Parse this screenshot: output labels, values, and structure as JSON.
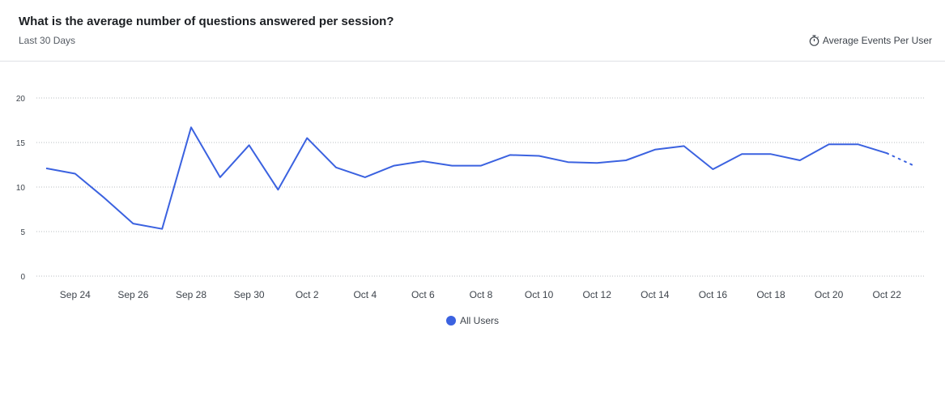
{
  "header": {
    "title": "What is the average number of questions answered per session?",
    "subtitle": "Last 30 Days",
    "metric_label": "Average Events Per User",
    "metric_icon": "stopwatch-icon"
  },
  "colors": {
    "series": "#3b62e0",
    "grid": "#b8bcc2",
    "axis_text": "#3e444c"
  },
  "chart_data": {
    "type": "line",
    "title": "What is the average number of questions answered per session?",
    "xlabel": "",
    "ylabel": "",
    "ylim": [
      0,
      20
    ],
    "yticks": [
      0,
      5,
      10,
      15,
      20
    ],
    "grid": true,
    "legend_position": "bottom-center",
    "x": [
      "Sep 23",
      "Sep 24",
      "Sep 25",
      "Sep 26",
      "Sep 27",
      "Sep 28",
      "Sep 29",
      "Sep 30",
      "Oct 1",
      "Oct 2",
      "Oct 3",
      "Oct 4",
      "Oct 5",
      "Oct 6",
      "Oct 7",
      "Oct 8",
      "Oct 9",
      "Oct 10",
      "Oct 11",
      "Oct 12",
      "Oct 13",
      "Oct 14",
      "Oct 15",
      "Oct 16",
      "Oct 17",
      "Oct 18",
      "Oct 19",
      "Oct 20",
      "Oct 21",
      "Oct 22",
      "Oct 23"
    ],
    "xtick_labels": [
      "Sep 24",
      "Sep 26",
      "Sep 28",
      "Sep 30",
      "Oct 2",
      "Oct 4",
      "Oct 6",
      "Oct 8",
      "Oct 10",
      "Oct 12",
      "Oct 14",
      "Oct 16",
      "Oct 18",
      "Oct 20",
      "Oct 22"
    ],
    "series": [
      {
        "name": "All Users",
        "values": [
          12.1,
          11.5,
          8.8,
          5.9,
          5.3,
          16.7,
          11.1,
          14.7,
          9.7,
          15.5,
          12.2,
          11.1,
          12.4,
          12.9,
          12.4,
          12.4,
          13.6,
          13.5,
          12.8,
          12.7,
          13.0,
          14.2,
          14.6,
          12.0,
          13.7,
          13.7,
          13.0,
          14.8,
          14.8,
          13.8,
          12.3
        ],
        "incomplete_from_index": 29
      }
    ]
  }
}
